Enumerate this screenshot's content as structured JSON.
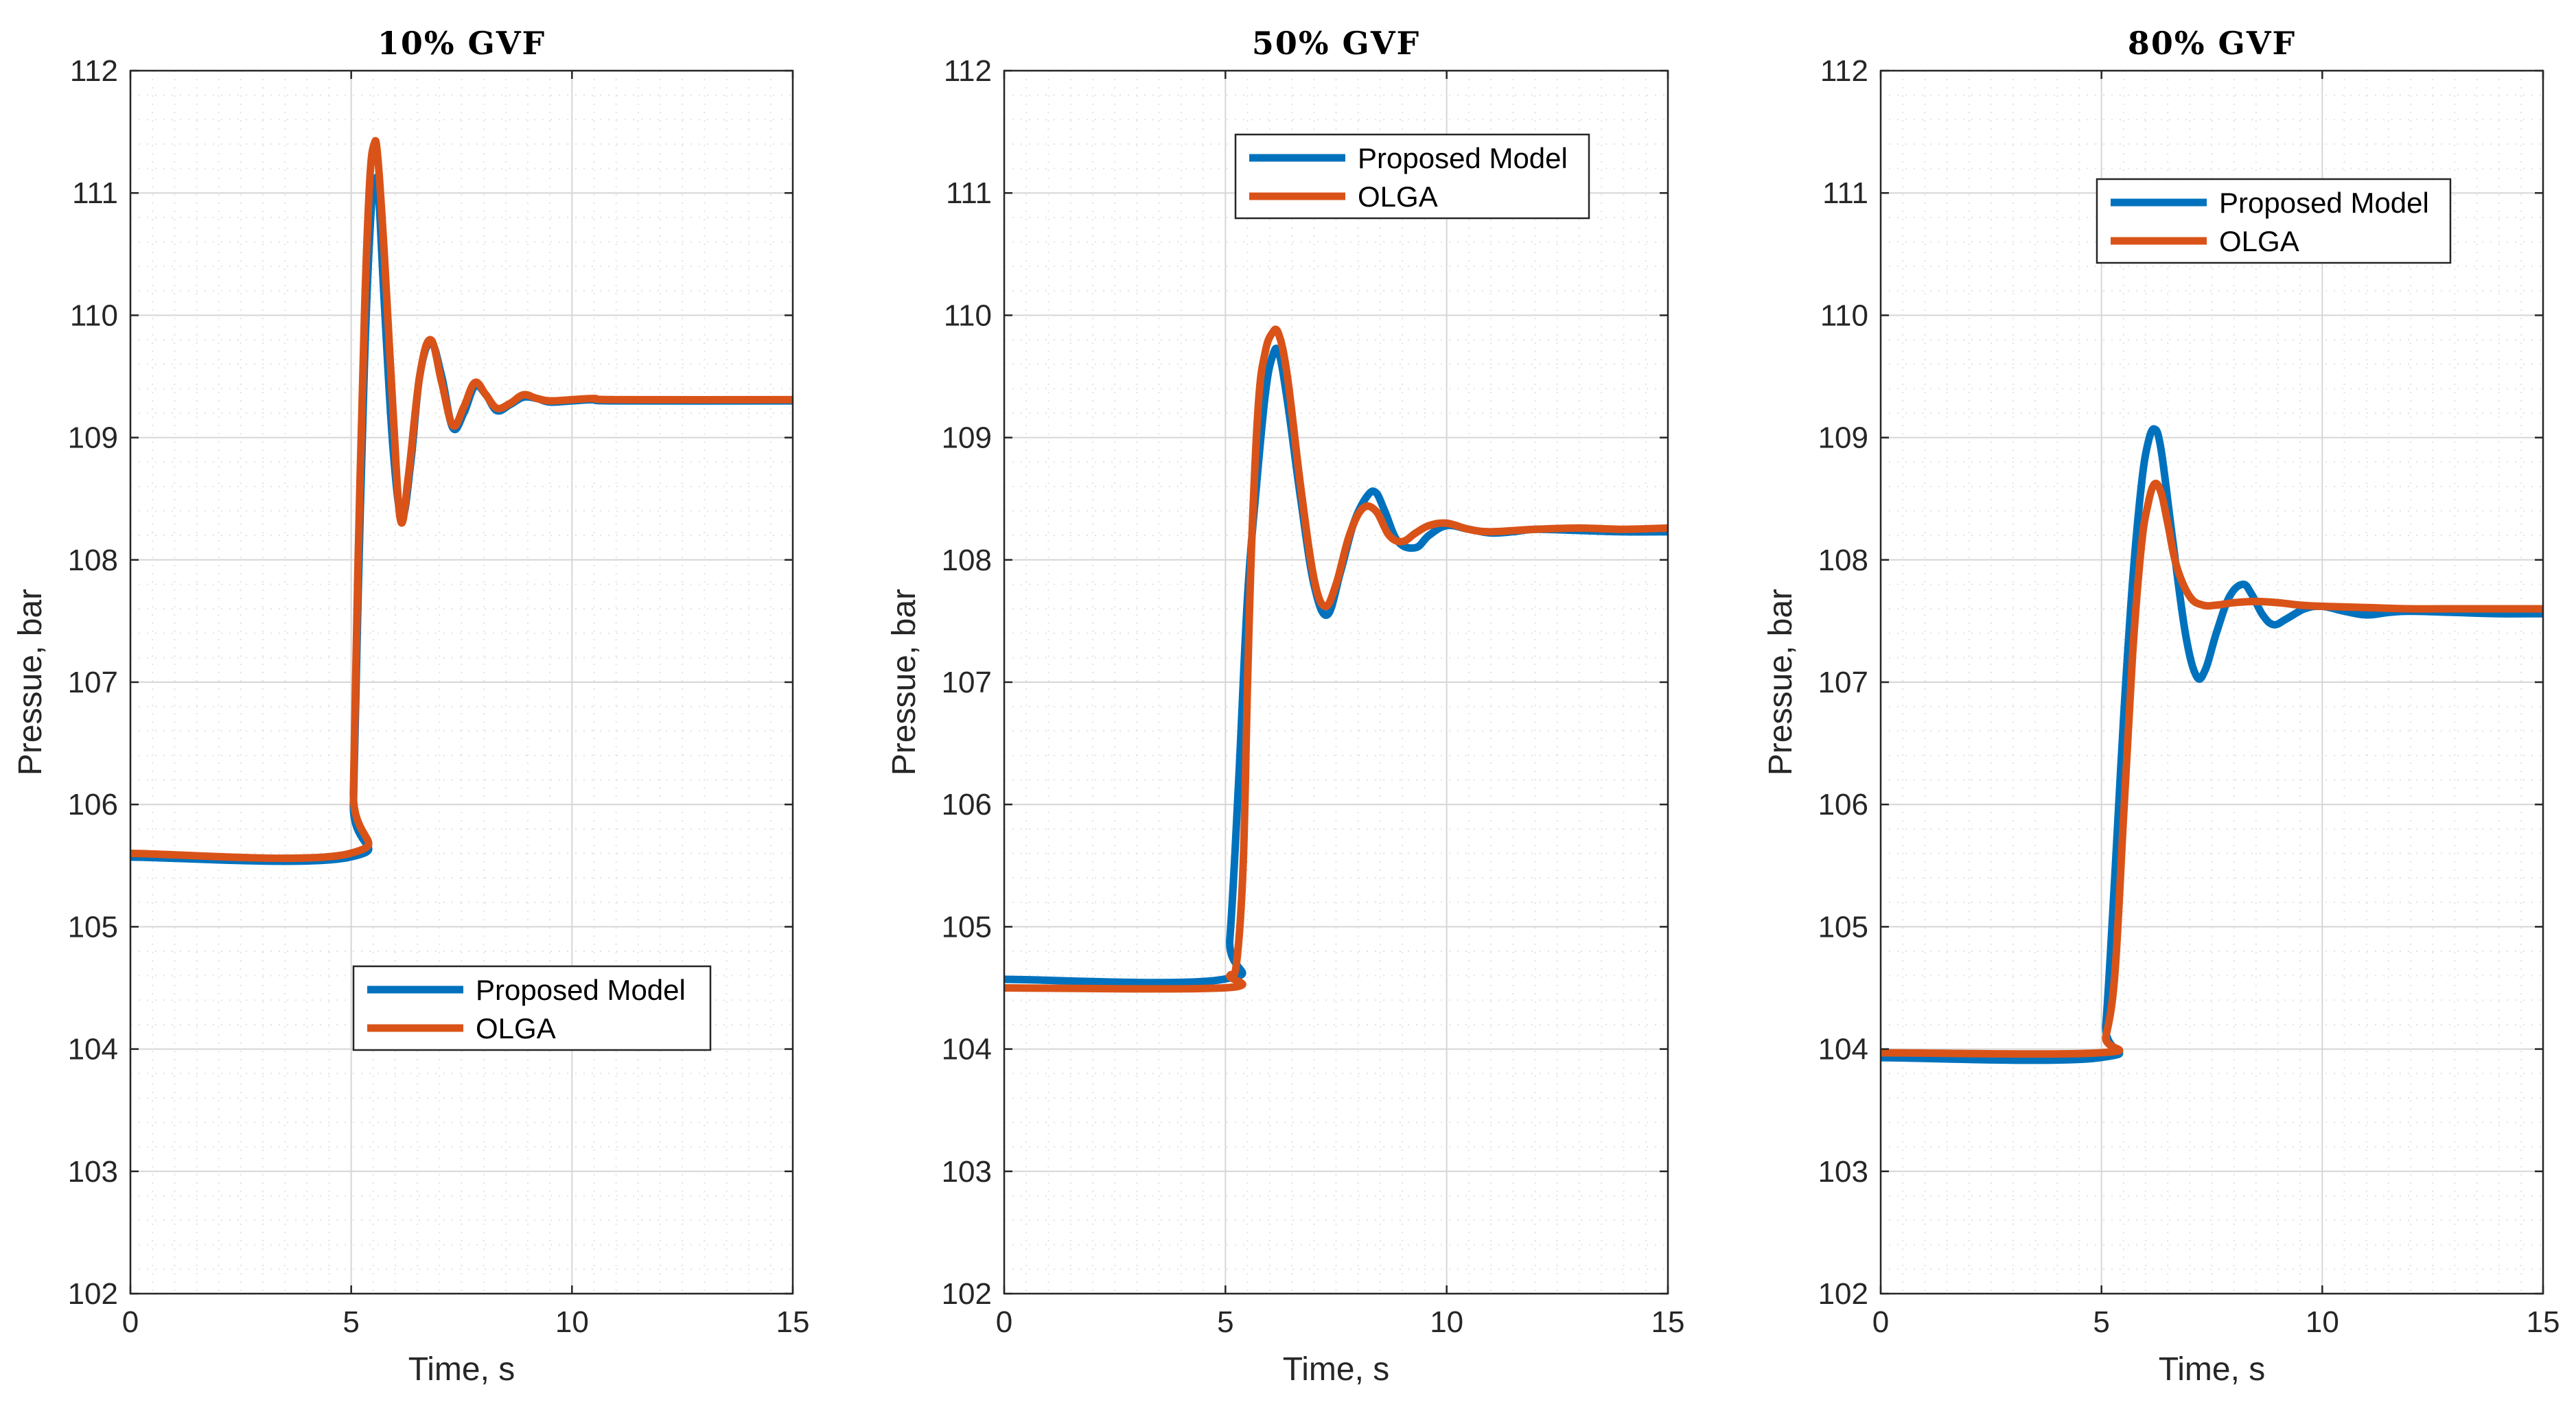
{
  "chart_data": [
    {
      "type": "line",
      "title": "10% GVF",
      "xlabel": "Time, s",
      "ylabel": "Pressue, bar",
      "xlim": [
        0,
        15
      ],
      "ylim": [
        102,
        112
      ],
      "xticks": [
        "0",
        "5",
        "10",
        "15"
      ],
      "yticks": [
        "102",
        "103",
        "104",
        "105",
        "106",
        "107",
        "108",
        "109",
        "110",
        "111",
        "112"
      ],
      "grid": true,
      "legend_position": "lower-center",
      "series": [
        {
          "name": "Proposed Model",
          "color": "#0072BD",
          "x": [
            0,
            4.98,
            5.05,
            5.15,
            5.3,
            5.45,
            5.55,
            5.62,
            5.75,
            5.95,
            6.15,
            6.35,
            6.55,
            6.8,
            7.05,
            7.3,
            7.55,
            7.8,
            8.05,
            8.3,
            8.6,
            8.9,
            9.2,
            9.5,
            10,
            10.5,
            11,
            15
          ],
          "values": [
            105.57,
            105.57,
            106.0,
            107.6,
            109.6,
            110.85,
            111.1,
            111.0,
            110.1,
            108.9,
            108.35,
            108.8,
            109.5,
            109.78,
            109.5,
            109.08,
            109.2,
            109.42,
            109.35,
            109.22,
            109.27,
            109.33,
            109.32,
            109.29,
            109.3,
            109.31,
            109.3,
            109.3
          ]
        },
        {
          "name": "OLGA",
          "color": "#D95319",
          "x": [
            0,
            4.98,
            5.05,
            5.15,
            5.3,
            5.42,
            5.52,
            5.6,
            5.75,
            5.95,
            6.12,
            6.3,
            6.55,
            6.8,
            7.05,
            7.3,
            7.55,
            7.8,
            8.05,
            8.3,
            8.6,
            8.9,
            9.2,
            9.5,
            10,
            10.5,
            11,
            15
          ],
          "values": [
            105.6,
            105.6,
            106.1,
            107.9,
            110.0,
            111.1,
            111.4,
            111.3,
            110.5,
            109.2,
            108.32,
            108.7,
            109.5,
            109.8,
            109.45,
            109.1,
            109.25,
            109.45,
            109.35,
            109.24,
            109.28,
            109.35,
            109.32,
            109.3,
            109.31,
            109.32,
            109.31,
            109.31
          ]
        }
      ]
    },
    {
      "type": "line",
      "title": "50% GVF",
      "xlabel": "Time, s",
      "ylabel": "Pressue, bar",
      "xlim": [
        0,
        15
      ],
      "ylim": [
        102,
        112
      ],
      "xticks": [
        "0",
        "5",
        "10",
        "15"
      ],
      "yticks": [
        "102",
        "103",
        "104",
        "105",
        "106",
        "107",
        "108",
        "109",
        "110",
        "111",
        "112"
      ],
      "grid": true,
      "legend_position": "top-center",
      "series": [
        {
          "name": "Proposed Model",
          "color": "#0072BD",
          "x": [
            0,
            4.95,
            5.1,
            5.3,
            5.5,
            5.7,
            5.9,
            6.05,
            6.2,
            6.4,
            6.7,
            7.0,
            7.3,
            7.6,
            7.9,
            8.2,
            8.4,
            8.6,
            8.9,
            9.3,
            9.6,
            10,
            10.5,
            11,
            11.5,
            12,
            13,
            14,
            15
          ],
          "values": [
            104.57,
            104.57,
            104.9,
            106.2,
            107.7,
            108.6,
            109.35,
            109.65,
            109.7,
            109.3,
            108.5,
            107.8,
            107.55,
            107.9,
            108.3,
            108.52,
            108.55,
            108.4,
            108.15,
            108.1,
            108.2,
            108.28,
            108.25,
            108.22,
            108.23,
            108.25,
            108.24,
            108.23,
            108.23
          ]
        },
        {
          "name": "OLGA",
          "color": "#D95319",
          "x": [
            0,
            4.95,
            5.1,
            5.25,
            5.4,
            5.5,
            5.6,
            5.75,
            5.9,
            6.05,
            6.2,
            6.4,
            6.7,
            7.0,
            7.25,
            7.5,
            7.8,
            8.1,
            8.4,
            8.7,
            9.0,
            9.3,
            9.6,
            10,
            10.5,
            11,
            12,
            13,
            14,
            15
          ],
          "values": [
            104.5,
            104.5,
            104.6,
            104.7,
            105.5,
            107.0,
            108.2,
            109.3,
            109.7,
            109.85,
            109.85,
            109.5,
            108.6,
            107.85,
            107.62,
            107.8,
            108.2,
            108.42,
            108.4,
            108.2,
            108.15,
            108.22,
            108.28,
            108.3,
            108.25,
            108.23,
            108.25,
            108.26,
            108.25,
            108.26
          ]
        }
      ]
    },
    {
      "type": "line",
      "title": "80% GVF",
      "xlabel": "Time, s",
      "ylabel": "Pressue, bar",
      "xlim": [
        0,
        15
      ],
      "ylim": [
        102,
        112
      ],
      "xticks": [
        "0",
        "5",
        "10",
        "15"
      ],
      "yticks": [
        "102",
        "103",
        "104",
        "105",
        "106",
        "107",
        "108",
        "109",
        "110",
        "111",
        "112"
      ],
      "grid": true,
      "legend_position": "top-center",
      "series": [
        {
          "name": "Proposed Model",
          "color": "#0072BD",
          "x": [
            0,
            4.98,
            5.1,
            5.3,
            5.5,
            5.7,
            5.9,
            6.05,
            6.2,
            6.35,
            6.6,
            6.9,
            7.15,
            7.35,
            7.6,
            7.9,
            8.2,
            8.4,
            8.65,
            8.9,
            9.2,
            9.6,
            10,
            10.5,
            11,
            11.5,
            12,
            13,
            14,
            15
          ],
          "values": [
            103.93,
            103.93,
            104.2,
            105.4,
            106.7,
            107.8,
            108.6,
            108.95,
            109.07,
            108.9,
            108.2,
            107.4,
            107.05,
            107.1,
            107.4,
            107.7,
            107.8,
            107.72,
            107.55,
            107.47,
            107.52,
            107.6,
            107.62,
            107.58,
            107.55,
            107.57,
            107.58,
            107.57,
            107.56,
            107.56
          ]
        },
        {
          "name": "OLGA",
          "color": "#D95319",
          "x": [
            0,
            4.98,
            5.1,
            5.3,
            5.5,
            5.7,
            5.9,
            6.05,
            6.2,
            6.35,
            6.5,
            6.7,
            7.0,
            7.3,
            7.6,
            8.0,
            8.5,
            9.0,
            9.5,
            10,
            11,
            12,
            13,
            14,
            15
          ],
          "values": [
            103.97,
            103.97,
            104.1,
            104.6,
            105.9,
            107.2,
            108.1,
            108.45,
            108.62,
            108.55,
            108.3,
            107.95,
            107.7,
            107.63,
            107.63,
            107.65,
            107.66,
            107.65,
            107.63,
            107.62,
            107.61,
            107.6,
            107.6,
            107.6,
            107.6
          ]
        }
      ]
    }
  ]
}
